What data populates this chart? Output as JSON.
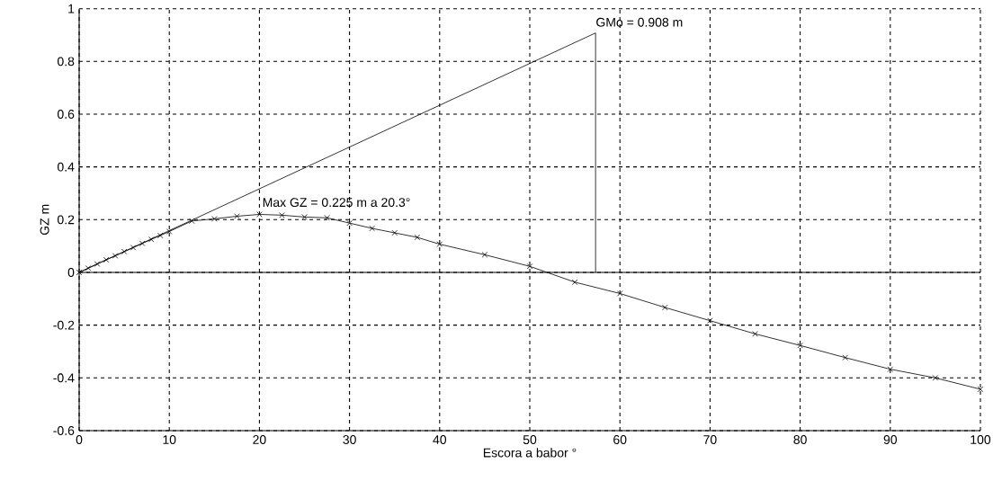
{
  "chart_data": {
    "type": "line",
    "xlabel": "Escora a babor °",
    "ylabel": "GZ  m",
    "xlim": [
      0,
      100
    ],
    "ylim": [
      -0.6,
      1
    ],
    "xticks": [
      0,
      10,
      20,
      30,
      40,
      50,
      60,
      70,
      80,
      90,
      100
    ],
    "yticks": [
      -0.6,
      -0.4,
      -0.2,
      0,
      0.2,
      0.4,
      0.6,
      0.8,
      1
    ],
    "grid": true,
    "marker": "cross",
    "line_style": "solid",
    "series": [
      {
        "color": "#000000",
        "x": [
          0,
          1,
          2,
          3,
          4,
          5,
          6,
          7,
          8,
          9,
          10,
          12.5,
          15,
          17.5,
          20,
          22.5,
          25,
          27.5,
          30,
          32.5,
          35,
          37.5,
          40,
          45,
          50,
          55,
          60,
          65,
          70,
          75,
          80,
          85,
          90,
          95,
          100
        ],
        "values": [
          0,
          0.016,
          0.032,
          0.048,
          0.063,
          0.079,
          0.094,
          0.11,
          0.125,
          0.14,
          0.155,
          0.195,
          0.203,
          0.213,
          0.22,
          0.217,
          0.21,
          0.207,
          0.187,
          0.167,
          0.15,
          0.133,
          0.107,
          0.067,
          0.023,
          -0.037,
          -0.08,
          -0.133,
          -0.183,
          -0.233,
          -0.277,
          -0.323,
          -0.367,
          -0.4,
          -0.443
        ]
      },
      {
        "type": "line",
        "marker": "none",
        "color": "#000000",
        "x": [
          0,
          57.3,
          57.3
        ],
        "values": [
          0,
          0.908,
          0
        ]
      }
    ],
    "ref_lines": [
      {
        "axis": "y",
        "value": 0,
        "color": "#000000",
        "line_style": "solid"
      }
    ],
    "annotations": [
      {
        "text": "Max  GZ = 0.225 m a  20.3°",
        "x": 20.3,
        "y": 0.225
      },
      {
        "text": "GMo = 0.908 m",
        "x": 57.3,
        "y": 0.908
      }
    ]
  }
}
